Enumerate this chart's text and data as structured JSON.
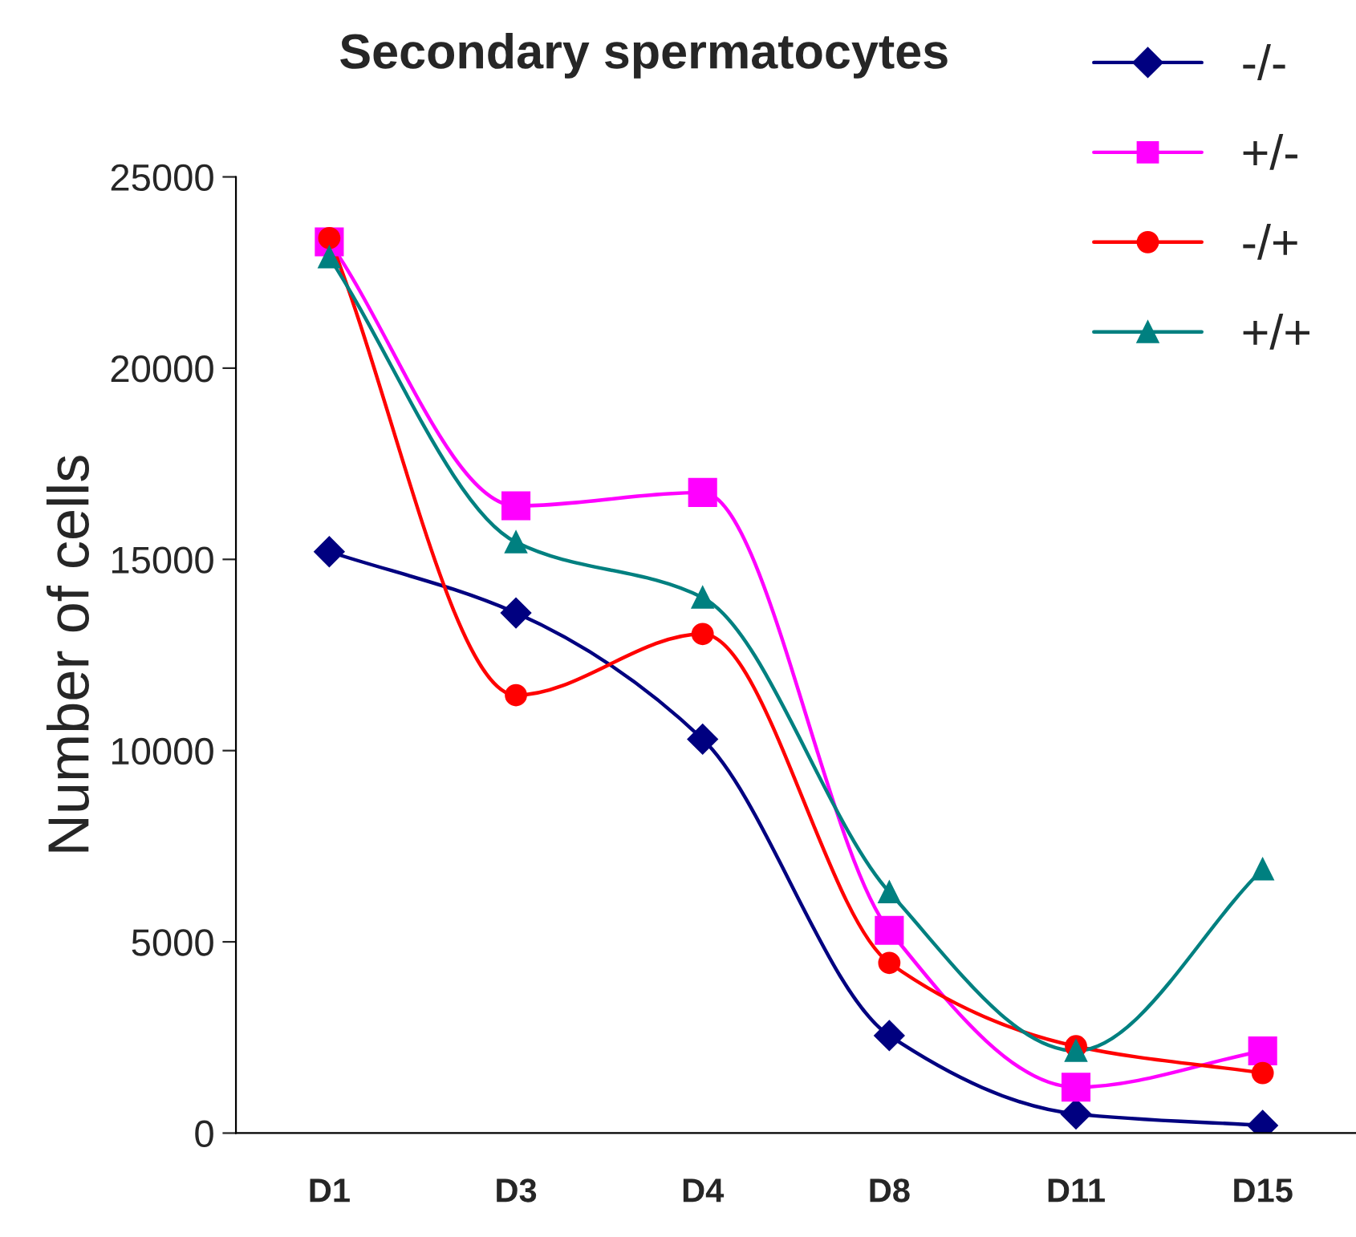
{
  "chart_data": {
    "type": "line",
    "title": "Secondary spermatocytes",
    "ylabel": "Number of cells",
    "categories": [
      "D1",
      "D3",
      "D4",
      "D8",
      "D11",
      "D15"
    ],
    "series": [
      {
        "name": "-/-",
        "color": "#000080",
        "marker": "diamond",
        "values": [
          15200,
          13600,
          10300,
          2550,
          500,
          200
        ]
      },
      {
        "name": "+/-",
        "color": "#ff00ff",
        "marker": "square",
        "values": [
          23300,
          16400,
          16750,
          5300,
          1200,
          2150
        ]
      },
      {
        "name": "-/+",
        "color": "#ff0000",
        "marker": "circle",
        "values": [
          23400,
          11450,
          13050,
          4450,
          2270,
          1570
        ]
      },
      {
        "name": "+/+",
        "color": "#008080",
        "marker": "triangle",
        "values": [
          22900,
          15450,
          14000,
          6300,
          2150,
          6900
        ]
      }
    ],
    "ylim": [
      0,
      25000
    ],
    "yticks": [
      0,
      5000,
      10000,
      15000,
      20000,
      25000
    ],
    "grid": false,
    "legend": "top right",
    "line_style": "solid"
  }
}
